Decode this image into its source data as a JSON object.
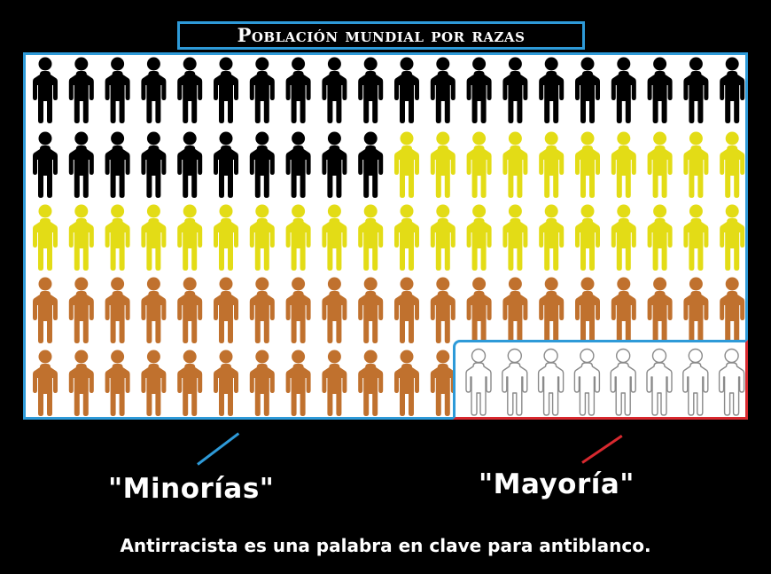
{
  "title": "Población mundial por razas",
  "labels": {
    "minorias": "\"Minorías\"",
    "mayoria": "\"Mayoría\""
  },
  "caption": "Antirracista es una palabra en clave para antiblanco.",
  "colors": {
    "black_figures": "#000000",
    "yellow_figures": "#e3dc16",
    "brown_figures": "#c0712e",
    "white_figures": "#ffffff",
    "minority_accent": "#2e9ad8",
    "majority_accent": "#d8292f"
  },
  "figure_rows": [
    {
      "groups": [
        {
          "color": "black",
          "count": 20
        }
      ]
    },
    {
      "groups": [
        {
          "color": "black",
          "count": 10
        },
        {
          "color": "yellow",
          "count": 10
        }
      ]
    },
    {
      "groups": [
        {
          "color": "yellow",
          "count": 20
        }
      ]
    },
    {
      "groups": [
        {
          "color": "brown",
          "count": 20
        }
      ]
    },
    {
      "groups": [
        {
          "color": "brown",
          "count": 12
        },
        {
          "color": "white",
          "count": 8
        }
      ]
    }
  ]
}
